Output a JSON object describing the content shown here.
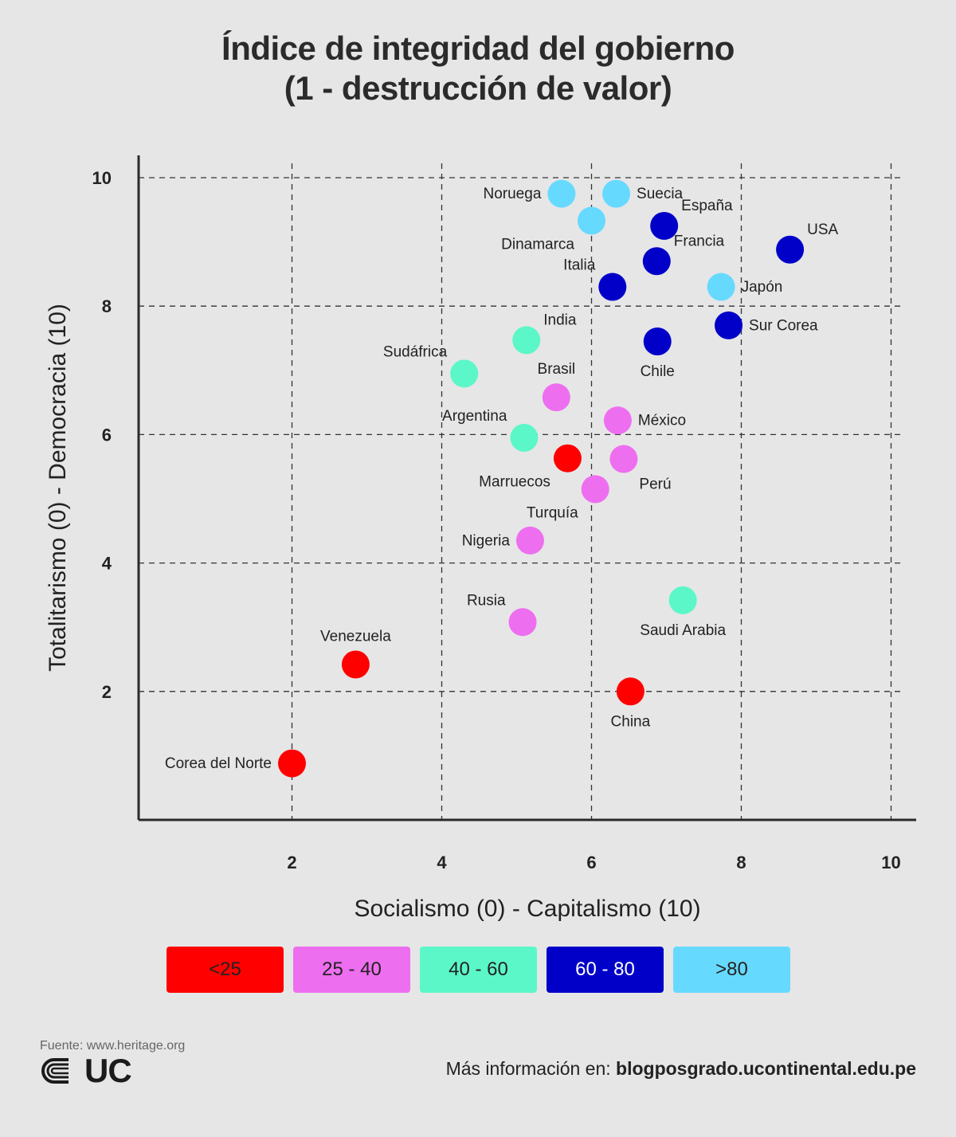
{
  "header": {
    "title_line1": "Índice de integridad del gobierno",
    "title_line2": "(1 - destrucción de valor)"
  },
  "chart_data": {
    "type": "scatter",
    "title": "Índice de integridad del gobierno (1 - destrucción de valor)",
    "xlabel": "Socialismo (0) - Capitalismo (10)",
    "ylabel": "Totalitarismo (0) - Democracia (10)",
    "xlim": [
      0,
      10.3
    ],
    "ylim": [
      0,
      10.3
    ],
    "xticks": [
      2,
      4,
      6,
      8,
      10
    ],
    "yticks": [
      2,
      4,
      6,
      8,
      10
    ],
    "grid": true,
    "categories": [
      {
        "key": "lt25",
        "label": "<25",
        "color": "#ff0000"
      },
      {
        "key": "25_40",
        "label": "25 - 40",
        "color": "#ee6ef0"
      },
      {
        "key": "40_60",
        "label": "40 - 60",
        "color": "#5bf7c8"
      },
      {
        "key": "60_80",
        "label": "60 - 80",
        "color": "#0000c8"
      },
      {
        "key": "gt80",
        "label": ">80",
        "color": "#66d9ff"
      }
    ],
    "points": [
      {
        "label": "Noruega",
        "x": 5.6,
        "y": 9.75,
        "cat": "gt80",
        "lpos": "left"
      },
      {
        "label": "Suecia",
        "x": 6.33,
        "y": 9.75,
        "cat": "gt80",
        "lpos": "right"
      },
      {
        "label": "Dinamarca",
        "x": 6.0,
        "y": 9.33,
        "cat": "gt80",
        "lpos": "below-left"
      },
      {
        "label": "España",
        "x": 6.97,
        "y": 9.25,
        "cat": "60_80",
        "lpos": "upper-right"
      },
      {
        "label": "USA",
        "x": 8.65,
        "y": 8.88,
        "cat": "60_80",
        "lpos": "upper-right"
      },
      {
        "label": "Francia",
        "x": 6.87,
        "y": 8.7,
        "cat": "60_80",
        "lpos": "upper-right"
      },
      {
        "label": "Italia",
        "x": 6.28,
        "y": 8.3,
        "cat": "60_80",
        "lpos": "upper-left"
      },
      {
        "label": "Japón",
        "x": 7.73,
        "y": 8.3,
        "cat": "gt80",
        "lpos": "right"
      },
      {
        "label": "Sur Corea",
        "x": 7.83,
        "y": 7.7,
        "cat": "60_80",
        "lpos": "right"
      },
      {
        "label": "India",
        "x": 5.13,
        "y": 7.47,
        "cat": "40_60",
        "lpos": "upper-right"
      },
      {
        "label": "Chile",
        "x": 6.88,
        "y": 7.45,
        "cat": "60_80",
        "lpos": "below"
      },
      {
        "label": "Sudáfrica",
        "x": 4.3,
        "y": 6.95,
        "cat": "40_60",
        "lpos": "upper-left"
      },
      {
        "label": "Brasil",
        "x": 5.53,
        "y": 6.58,
        "cat": "25_40",
        "lpos": "above"
      },
      {
        "label": "México",
        "x": 6.35,
        "y": 6.22,
        "cat": "25_40",
        "lpos": "right"
      },
      {
        "label": "Argentina",
        "x": 5.1,
        "y": 5.95,
        "cat": "40_60",
        "lpos": "upper-left"
      },
      {
        "label": "Marruecos",
        "x": 5.68,
        "y": 5.63,
        "cat": "lt25",
        "lpos": "below-left"
      },
      {
        "label": "Perú",
        "x": 6.43,
        "y": 5.62,
        "cat": "25_40",
        "lpos": "below-right"
      },
      {
        "label": "Turquía",
        "x": 6.05,
        "y": 5.15,
        "cat": "25_40",
        "lpos": "below-left"
      },
      {
        "label": "Nigeria",
        "x": 5.18,
        "y": 4.35,
        "cat": "25_40",
        "lpos": "left"
      },
      {
        "label": "Saudi Arabia",
        "x": 7.22,
        "y": 3.42,
        "cat": "40_60",
        "lpos": "below"
      },
      {
        "label": "Rusia",
        "x": 5.08,
        "y": 3.08,
        "cat": "25_40",
        "lpos": "upper-left"
      },
      {
        "label": "Venezuela",
        "x": 2.85,
        "y": 2.42,
        "cat": "lt25",
        "lpos": "above"
      },
      {
        "label": "China",
        "x": 6.52,
        "y": 2.0,
        "cat": "lt25",
        "lpos": "below"
      },
      {
        "label": "Corea del Norte",
        "x": 2.0,
        "y": 0.88,
        "cat": "lt25",
        "lpos": "left"
      }
    ]
  },
  "legend": [
    {
      "label": "<25",
      "color": "#ff0000"
    },
    {
      "label": "25 - 40",
      "color": "#ee6ef0"
    },
    {
      "label": "40 - 60",
      "color": "#5bf7c8"
    },
    {
      "label": "60 - 80",
      "color": "#0000c8"
    },
    {
      "label": ">80",
      "color": "#66d9ff"
    }
  ],
  "footer": {
    "source": "Fuente: www.heritage.org",
    "logo_text": "UC",
    "more_prefix": "Más información en: ",
    "more_link": "blogposgrado.ucontinental.edu.pe"
  }
}
